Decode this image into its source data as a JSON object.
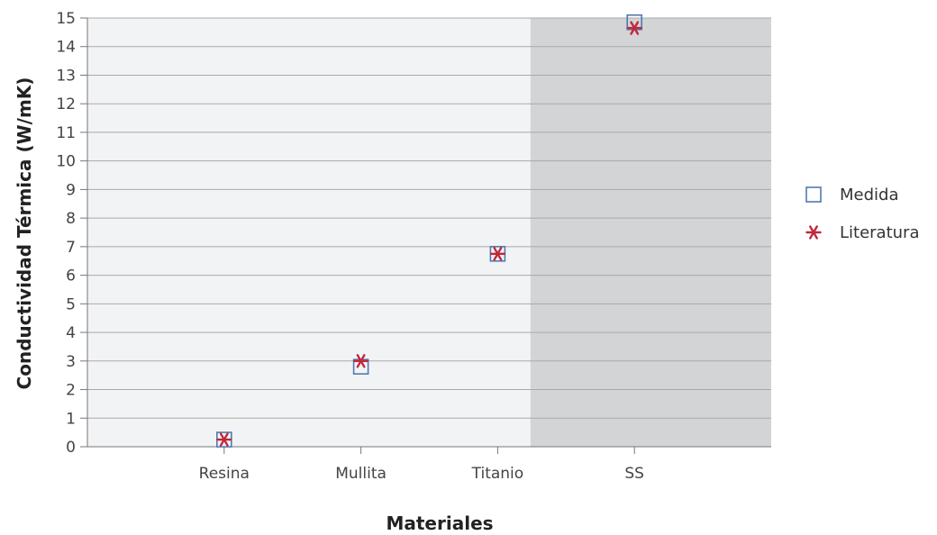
{
  "chart_data": {
    "type": "scatter",
    "categories": [
      "Resina",
      "Mullita",
      "Titanio",
      "SS"
    ],
    "series": [
      {
        "name": "Medida",
        "values": [
          0.25,
          2.8,
          6.75,
          14.85
        ],
        "marker": "square-open",
        "color": "#4f7bb0"
      },
      {
        "name": "Literatura",
        "values": [
          0.25,
          3.0,
          6.75,
          14.65
        ],
        "marker": "asterisk",
        "color": "#c0283c"
      }
    ],
    "title": "",
    "xlabel": "Materiales",
    "ylabel": "Conductividad Térmica (W/mK)",
    "ylim": [
      0,
      15
    ],
    "yticks": [
      0,
      1,
      2,
      3,
      4,
      5,
      6,
      7,
      8,
      9,
      10,
      11,
      12,
      13,
      14,
      15
    ],
    "grid": true,
    "legend": "right",
    "shaded_region": {
      "from_category": "SS",
      "color": "#d3d4d6"
    },
    "plot_background": "#f2f3f5"
  }
}
